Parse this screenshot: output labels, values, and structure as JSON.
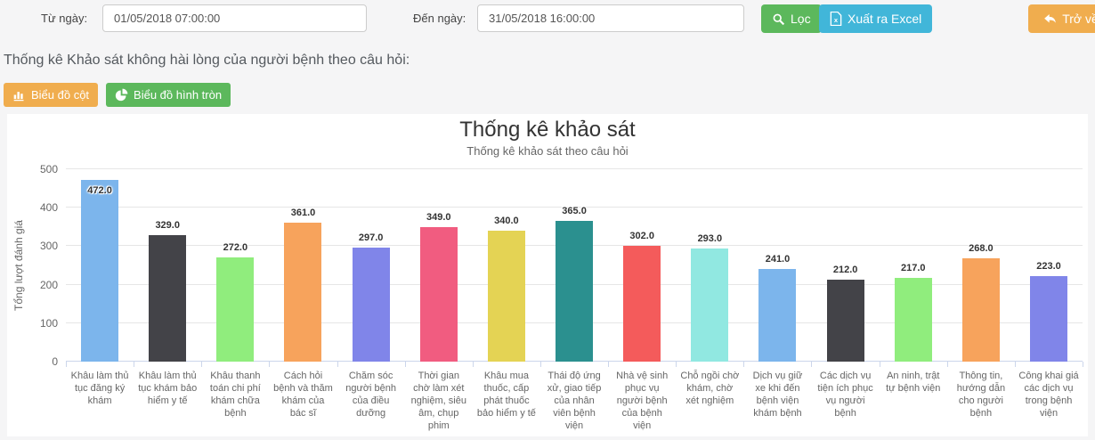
{
  "filter": {
    "from_label": "Từ ngày:",
    "from_value": "01/05/2018 07:00:00",
    "to_label": "Đến ngày:",
    "to_value": "31/05/2018 16:00:00",
    "filter_button": "Lọc",
    "filter_icon": "search-icon",
    "export_button": "Xuất ra Excel",
    "export_icon": "excel-file-icon",
    "back_button": "Trở về",
    "back_icon": "back-arrow-icon"
  },
  "section": {
    "title": "Thống kê Khảo sát không hài lòng của người bệnh theo câu hỏi:",
    "bar_chart_button": "Biểu đồ cột",
    "bar_chart_icon": "bar-chart-icon",
    "pie_chart_button": "Biểu đồ hình tròn",
    "pie_chart_icon": "pie-chart-icon"
  },
  "ui_colors": {
    "success_green": "#5cb85c",
    "info_cyan": "#41b6d9",
    "warning_orange": "#f0ad4e",
    "page_background": "#f5f5f6",
    "panel_background": "#ffffff"
  },
  "chart_data": {
    "type": "bar",
    "title": "Thống kê khảo sát",
    "subtitle": "Thống kê khảo sát theo câu hỏi",
    "xlabel": "",
    "ylabel": "Tổng lượt đánh giá",
    "ylim": [
      0,
      500
    ],
    "yticks": [
      0,
      100,
      200,
      300,
      400,
      500
    ],
    "grid": "horizontal",
    "legend": "none",
    "value_label_format": "one-decimal",
    "categories": [
      "Khâu làm thủ tục đăng ký khám",
      "Khâu làm thủ tục khám bảo hiểm y tế",
      "Khâu thanh toán chi phí khám chữa bệnh",
      "Cách hỏi bệnh và thăm khám của bác sĩ",
      "Chăm sóc người bệnh của điều dưỡng",
      "Thời gian chờ làm xét nghiệm, siêu âm, chụp phim",
      "Khâu mua thuốc, cấp phát thuốc bảo hiểm y tế",
      "Thái độ ứng xử, giao tiếp của nhân viên bệnh viện",
      "Nhà vệ sinh phục vụ người bệnh của bệnh viện",
      "Chỗ ngồi chờ khám, chờ xét nghiệm",
      "Dịch vụ giữ xe khi đến bệnh viện khám bệnh",
      "Các dịch vụ tiện ích phục vụ người bệnh",
      "An ninh, trật tự bệnh viện",
      "Thông tin, hướng dẫn cho người bệnh",
      "Công khai giá các dịch vụ trong bệnh viện"
    ],
    "values": [
      472,
      329,
      272,
      361,
      297,
      349,
      340,
      365,
      302,
      293,
      241,
      212,
      217,
      268,
      223
    ],
    "colors": [
      "#7cb5ec",
      "#434348",
      "#90ed7d",
      "#f7a35c",
      "#8085e9",
      "#f15c80",
      "#e4d354",
      "#2b908f",
      "#f45b5b",
      "#91e8e1"
    ],
    "gridline_color": "#e6e6e6",
    "axis_line_color": "#ccd6eb"
  }
}
